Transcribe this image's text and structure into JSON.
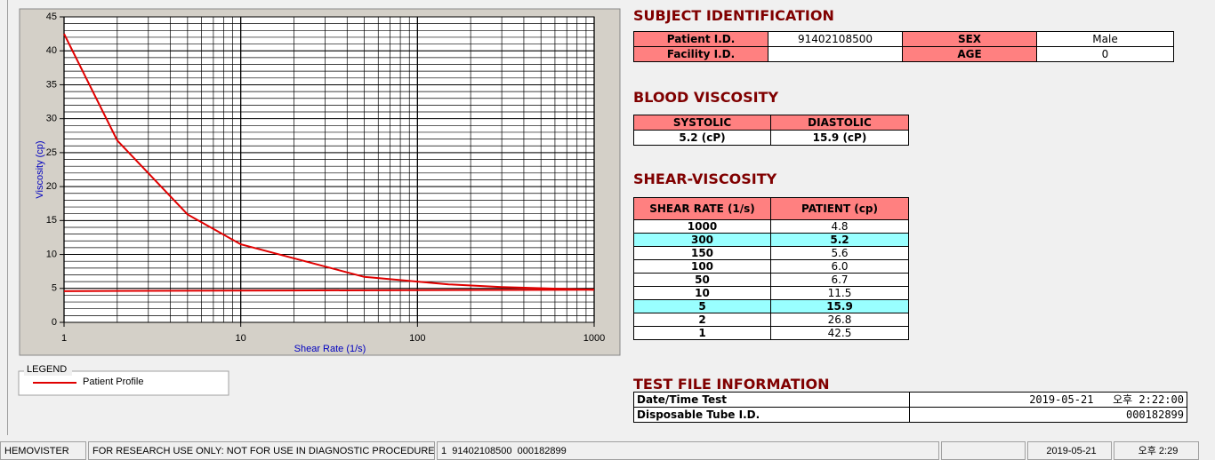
{
  "chart_data": {
    "type": "line",
    "xlabel": "Shear Rate (1/s)",
    "ylabel": "Viscosity (cp)",
    "xscale": "log",
    "xlim": [
      1,
      1000
    ],
    "xticks": [
      1,
      10,
      100,
      1000
    ],
    "ylim": [
      0,
      45
    ],
    "yticks": [
      0,
      5,
      10,
      15,
      20,
      25,
      30,
      35,
      40,
      45
    ],
    "grid": true,
    "legend_title": "LEGEND",
    "series": [
      {
        "name": "Patient Profile",
        "color": "#e00000",
        "x": [
          1,
          2,
          5,
          10,
          50,
          100,
          150,
          300,
          1000
        ],
        "values": [
          42.5,
          26.8,
          15.9,
          11.5,
          6.7,
          6.0,
          5.6,
          5.2,
          4.8
        ]
      },
      {
        "color": "#e00000",
        "x": [
          1,
          18,
          1000
        ],
        "values": [
          4.6,
          4.7,
          4.8
        ]
      }
    ]
  },
  "subject": {
    "title": "SUBJECT IDENTIFICATION",
    "patient_label": "Patient I.D.",
    "patient_id": "91402108500",
    "sex_label": "SEX",
    "sex": "Male",
    "facility_label": "Facility I.D.",
    "age_label": "AGE",
    "age": "0"
  },
  "blood": {
    "title": "BLOOD VISCOSITY",
    "headers": [
      "SYSTOLIC",
      "DIASTOLIC"
    ],
    "values": [
      "5.2 (cP)",
      "15.9 (cP)"
    ]
  },
  "shear": {
    "title": "SHEAR-VISCOSITY",
    "headers": [
      "SHEAR RATE (1/s)",
      "PATIENT (cp)"
    ],
    "rows": [
      {
        "rate": "1000",
        "patient": "4.8",
        "highlight": false
      },
      {
        "rate": "300",
        "patient": "5.2",
        "highlight": true
      },
      {
        "rate": "150",
        "patient": "5.6",
        "highlight": false
      },
      {
        "rate": "100",
        "patient": "6.0",
        "highlight": false
      },
      {
        "rate": "50",
        "patient": "6.7",
        "highlight": false
      },
      {
        "rate": "10",
        "patient": "11.5",
        "highlight": false
      },
      {
        "rate": "5",
        "patient": "15.9",
        "highlight": true
      },
      {
        "rate": "2",
        "patient": "26.8",
        "highlight": false
      },
      {
        "rate": "1",
        "patient": "42.5",
        "highlight": false
      }
    ]
  },
  "test_file": {
    "title": "TEST FILE INFORMATION",
    "date_label": "Date/Time Test",
    "date": "2019-05-21   오후 2:22:00",
    "tube_label": "Disposable Tube I.D.",
    "tube": "000182899"
  },
  "status": [
    "HEMOVISTER",
    "FOR RESEARCH USE ONLY: NOT FOR USE IN DIAGNOSTIC PROCEDURES",
    "1  91402108500  000182899",
    "2019-05-21",
    "오후 2:29"
  ]
}
